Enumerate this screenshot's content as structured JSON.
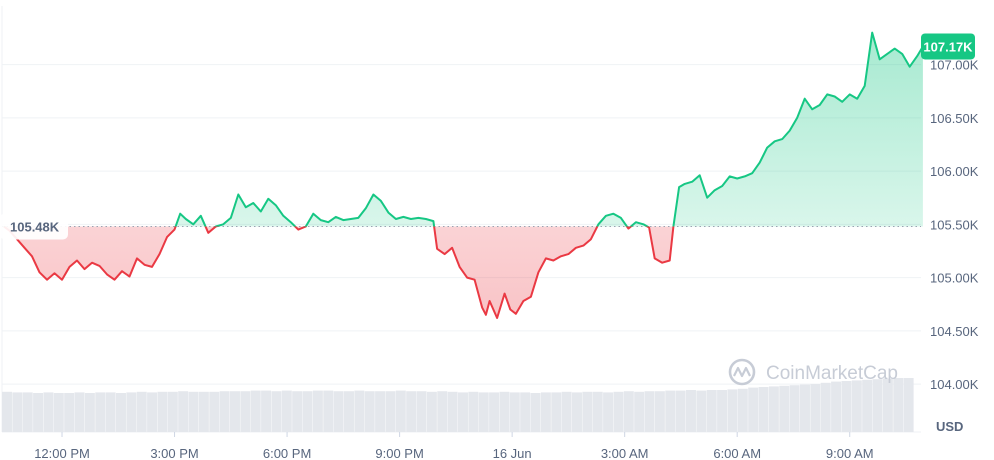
{
  "chart_data": {
    "type": "area",
    "currency_label": "USD",
    "watermark": "CoinMarketCap",
    "start_price_label": "105.48K",
    "current_price_label": "107.17K",
    "baseline": 105.48,
    "current": 107.17,
    "ylim": [
      103.55,
      107.55
    ],
    "y_ticks": [
      {
        "value": 107.0,
        "label": "107.00K"
      },
      {
        "value": 106.5,
        "label": "106.50K"
      },
      {
        "value": 106.0,
        "label": "106.00K"
      },
      {
        "value": 105.5,
        "label": "105.50K"
      },
      {
        "value": 105.0,
        "label": "105.00K"
      },
      {
        "value": 104.5,
        "label": "104.50K"
      },
      {
        "value": 104.0,
        "label": "104.00K"
      }
    ],
    "x_ticks": [
      {
        "hour": 12,
        "label": "12:00 PM"
      },
      {
        "hour": 15,
        "label": "3:00 PM"
      },
      {
        "hour": 18,
        "label": "6:00 PM"
      },
      {
        "hour": 21,
        "label": "9:00 PM"
      },
      {
        "hour": 24,
        "label": "16 Jun"
      },
      {
        "hour": 27,
        "label": "3:00 AM"
      },
      {
        "hour": 30,
        "label": "6:00 AM"
      },
      {
        "hour": 33,
        "label": "9:00 AM"
      }
    ],
    "x_range_hours": [
      10.4,
      34.9
    ],
    "series": [
      {
        "points": [
          [
            10.45,
            105.48
          ],
          [
            10.6,
            105.44
          ],
          [
            10.8,
            105.36
          ],
          [
            11.0,
            105.28
          ],
          [
            11.2,
            105.2
          ],
          [
            11.4,
            105.05
          ],
          [
            11.6,
            104.98
          ],
          [
            11.8,
            105.04
          ],
          [
            12.0,
            104.98
          ],
          [
            12.2,
            105.1
          ],
          [
            12.4,
            105.16
          ],
          [
            12.6,
            105.08
          ],
          [
            12.8,
            105.14
          ],
          [
            13.0,
            105.11
          ],
          [
            13.2,
            105.03
          ],
          [
            13.4,
            104.98
          ],
          [
            13.6,
            105.06
          ],
          [
            13.8,
            105.01
          ],
          [
            14.0,
            105.18
          ],
          [
            14.2,
            105.12
          ],
          [
            14.4,
            105.1
          ],
          [
            14.6,
            105.22
          ],
          [
            14.8,
            105.38
          ],
          [
            15.0,
            105.45
          ],
          [
            15.15,
            105.6
          ],
          [
            15.3,
            105.55
          ],
          [
            15.5,
            105.5
          ],
          [
            15.7,
            105.58
          ],
          [
            15.9,
            105.42
          ],
          [
            16.1,
            105.48
          ],
          [
            16.3,
            105.5
          ],
          [
            16.5,
            105.56
          ],
          [
            16.7,
            105.78
          ],
          [
            16.9,
            105.66
          ],
          [
            17.1,
            105.7
          ],
          [
            17.3,
            105.62
          ],
          [
            17.5,
            105.74
          ],
          [
            17.7,
            105.68
          ],
          [
            17.9,
            105.58
          ],
          [
            18.1,
            105.52
          ],
          [
            18.3,
            105.45
          ],
          [
            18.5,
            105.48
          ],
          [
            18.7,
            105.6
          ],
          [
            18.9,
            105.54
          ],
          [
            19.1,
            105.52
          ],
          [
            19.3,
            105.57
          ],
          [
            19.5,
            105.54
          ],
          [
            19.7,
            105.55
          ],
          [
            19.9,
            105.56
          ],
          [
            20.1,
            105.65
          ],
          [
            20.3,
            105.78
          ],
          [
            20.5,
            105.72
          ],
          [
            20.7,
            105.61
          ],
          [
            20.9,
            105.55
          ],
          [
            21.1,
            105.57
          ],
          [
            21.3,
            105.55
          ],
          [
            21.5,
            105.56
          ],
          [
            21.7,
            105.55
          ],
          [
            21.9,
            105.53
          ],
          [
            22.0,
            105.27
          ],
          [
            22.2,
            105.22
          ],
          [
            22.4,
            105.28
          ],
          [
            22.6,
            105.1
          ],
          [
            22.8,
            105.0
          ],
          [
            23.0,
            104.98
          ],
          [
            23.2,
            104.72
          ],
          [
            23.3,
            104.65
          ],
          [
            23.4,
            104.78
          ],
          [
            23.6,
            104.62
          ],
          [
            23.8,
            104.85
          ],
          [
            23.95,
            104.7
          ],
          [
            24.1,
            104.66
          ],
          [
            24.3,
            104.78
          ],
          [
            24.5,
            104.82
          ],
          [
            24.7,
            105.05
          ],
          [
            24.9,
            105.18
          ],
          [
            25.1,
            105.16
          ],
          [
            25.3,
            105.2
          ],
          [
            25.5,
            105.22
          ],
          [
            25.7,
            105.28
          ],
          [
            25.9,
            105.3
          ],
          [
            26.1,
            105.36
          ],
          [
            26.3,
            105.5
          ],
          [
            26.5,
            105.58
          ],
          [
            26.7,
            105.6
          ],
          [
            26.9,
            105.56
          ],
          [
            27.1,
            105.46
          ],
          [
            27.3,
            105.52
          ],
          [
            27.5,
            105.5
          ],
          [
            27.65,
            105.47
          ],
          [
            27.8,
            105.18
          ],
          [
            28.0,
            105.14
          ],
          [
            28.2,
            105.16
          ],
          [
            28.3,
            105.48
          ],
          [
            28.45,
            105.85
          ],
          [
            28.6,
            105.88
          ],
          [
            28.8,
            105.9
          ],
          [
            29.0,
            105.96
          ],
          [
            29.2,
            105.75
          ],
          [
            29.4,
            105.82
          ],
          [
            29.6,
            105.86
          ],
          [
            29.8,
            105.95
          ],
          [
            30.0,
            105.93
          ],
          [
            30.2,
            105.95
          ],
          [
            30.4,
            105.98
          ],
          [
            30.6,
            106.08
          ],
          [
            30.8,
            106.22
          ],
          [
            31.0,
            106.28
          ],
          [
            31.2,
            106.3
          ],
          [
            31.4,
            106.38
          ],
          [
            31.6,
            106.5
          ],
          [
            31.8,
            106.68
          ],
          [
            32.0,
            106.58
          ],
          [
            32.2,
            106.62
          ],
          [
            32.4,
            106.72
          ],
          [
            32.6,
            106.7
          ],
          [
            32.8,
            106.65
          ],
          [
            33.0,
            106.72
          ],
          [
            33.2,
            106.68
          ],
          [
            33.4,
            106.8
          ],
          [
            33.6,
            107.3
          ],
          [
            33.8,
            107.05
          ],
          [
            34.0,
            107.1
          ],
          [
            34.2,
            107.15
          ],
          [
            34.4,
            107.1
          ],
          [
            34.6,
            106.98
          ],
          [
            34.8,
            107.08
          ],
          [
            34.95,
            107.17
          ]
        ]
      }
    ],
    "volume_ylim": [
      0,
      100
    ],
    "volume": [
      67,
      66,
      66,
      65,
      66,
      65,
      65,
      66,
      65,
      66,
      66,
      65,
      66,
      67,
      66,
      67,
      67,
      68,
      67,
      67,
      67,
      68,
      68,
      68,
      69,
      69,
      68,
      69,
      68,
      68,
      69,
      69,
      68,
      68,
      69,
      68,
      68,
      68,
      69,
      68,
      68,
      67,
      68,
      67,
      66,
      67,
      66,
      66,
      67,
      66,
      66,
      65,
      66,
      66,
      67,
      66,
      67,
      67,
      66,
      67,
      68,
      67,
      68,
      68,
      69,
      69,
      70,
      69,
      70,
      70,
      71,
      72,
      74,
      75,
      76,
      77,
      78,
      79,
      80,
      82,
      84,
      85,
      86,
      87,
      88,
      89,
      90,
      90
    ],
    "colors": {
      "up": "#16c784",
      "down": "#ea3943",
      "up_fill": "#16c784",
      "down_fill": "#ea3943",
      "grid": "#eff2f5",
      "volume": "#e4e7ec",
      "watermark": "#c7ccd6",
      "label_text": "#58667e"
    }
  }
}
